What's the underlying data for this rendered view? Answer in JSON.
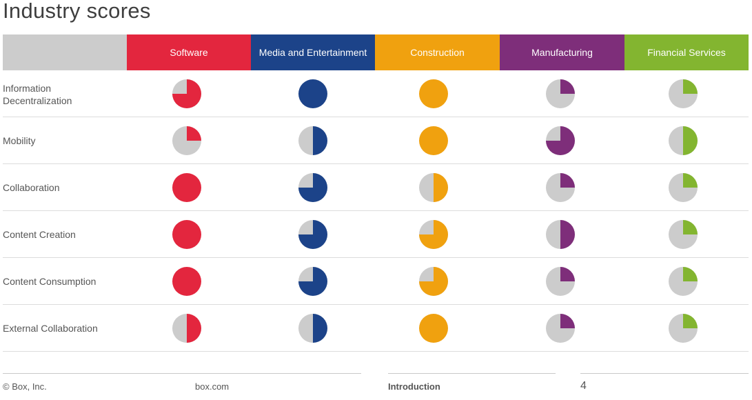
{
  "title": "Industry scores",
  "colors": {
    "header_blank": "#cccccc",
    "empty_slice": "#cccccc",
    "Software": "#e3263e",
    "Media and Entertainment": "#1c4389",
    "Construction": "#f0a10f",
    "Manufacturing": "#7e2e7a",
    "Financial Services": "#83b530"
  },
  "chart_data": {
    "type": "table",
    "columns": [
      "Software",
      "Media and Entertainment",
      "Construction",
      "Manufacturing",
      "Financial Services"
    ],
    "rows": [
      {
        "label": "Information Decentralization",
        "scores": [
          0.75,
          1.0,
          1.0,
          0.25,
          0.25
        ]
      },
      {
        "label": "Mobility",
        "scores": [
          0.25,
          0.5,
          1.0,
          0.75,
          0.5
        ]
      },
      {
        "label": "Collaboration",
        "scores": [
          1.0,
          0.75,
          0.5,
          0.25,
          0.25
        ]
      },
      {
        "label": "Content Creation",
        "scores": [
          1.0,
          0.75,
          0.75,
          0.5,
          0.25
        ]
      },
      {
        "label": "Content Consumption",
        "scores": [
          1.0,
          0.75,
          0.75,
          0.25,
          0.25
        ]
      },
      {
        "label": "External Collaboration",
        "scores": [
          0.5,
          0.5,
          1.0,
          0.25,
          0.25
        ]
      }
    ]
  },
  "footer": {
    "copyright": "© Box, Inc.",
    "website": "box.com",
    "section": "Introduction",
    "page": "4"
  }
}
